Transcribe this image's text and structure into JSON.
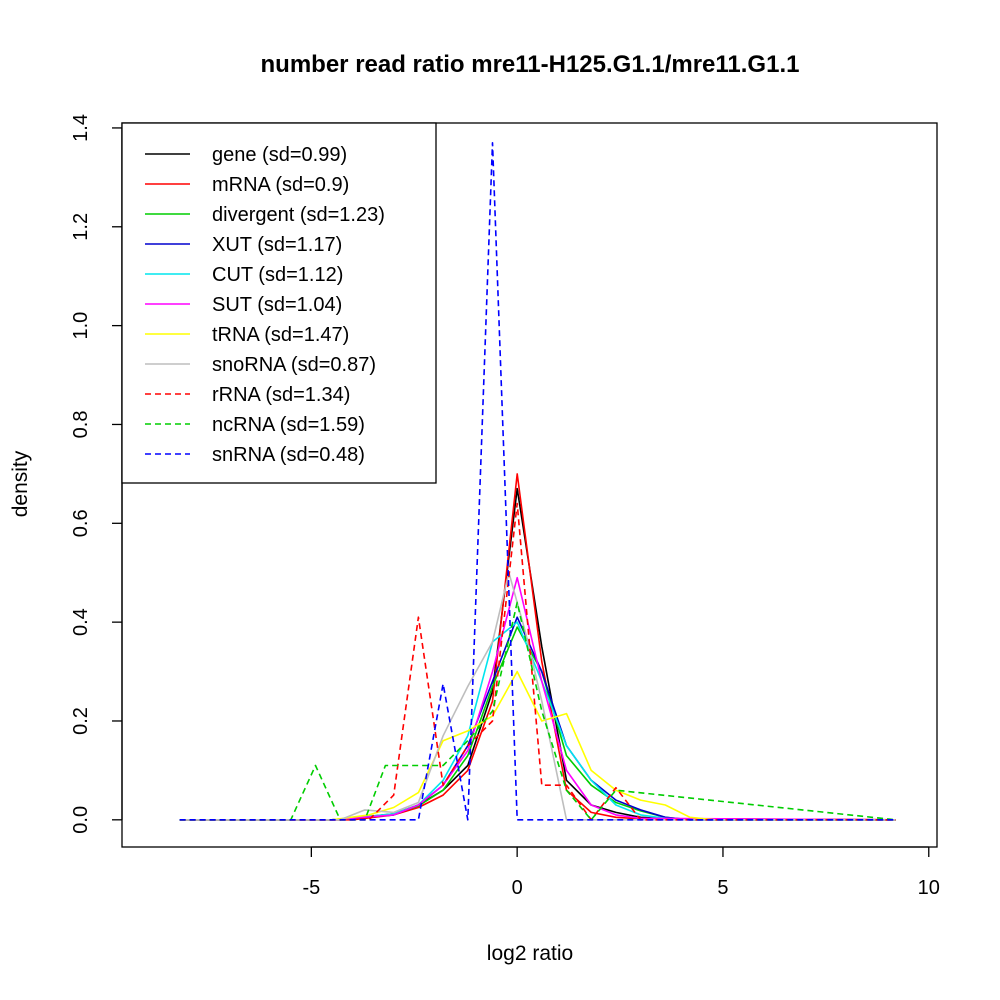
{
  "chart_data": {
    "type": "line",
    "title": "number read ratio mre11-H125.G1.1/mre11.G1.1",
    "xlabel": "log2 ratio",
    "ylabel": "density",
    "xlim": [
      -9.6,
      10.2
    ],
    "ylim": [
      -0.055,
      1.41
    ],
    "x_ticks": [
      -5,
      0,
      5,
      10
    ],
    "y_ticks": [
      0.0,
      0.2,
      0.4,
      0.6,
      0.8,
      1.0,
      1.2,
      1.4
    ],
    "x_tick_labels": [
      "-5",
      "0",
      "5",
      "10"
    ],
    "y_tick_labels": [
      "0.0",
      "0.2",
      "0.4",
      "0.6",
      "0.8",
      "1.0",
      "1.2",
      "1.4"
    ],
    "grid": false,
    "legend_position": "top-left",
    "series": [
      {
        "name": "gene (sd=0.99)",
        "color": "#000000",
        "dash": "solid",
        "x": [
          -8.2,
          -4.3,
          -3.0,
          -2.4,
          -1.8,
          -1.2,
          -0.6,
          0.0,
          0.6,
          1.2,
          1.8,
          2.4,
          3.0,
          3.6,
          9.2
        ],
        "y": [
          0.0,
          0.0,
          0.012,
          0.03,
          0.06,
          0.11,
          0.26,
          0.67,
          0.35,
          0.08,
          0.03,
          0.015,
          0.005,
          0.002,
          0.0
        ]
      },
      {
        "name": "mRNA (sd=0.9)",
        "color": "#ff0000",
        "dash": "solid",
        "x": [
          -8.2,
          -4.0,
          -3.0,
          -2.4,
          -1.8,
          -1.2,
          -0.6,
          0.0,
          0.6,
          1.2,
          1.8,
          2.4,
          3.0,
          9.2
        ],
        "y": [
          0.0,
          0.0,
          0.01,
          0.025,
          0.05,
          0.1,
          0.24,
          0.7,
          0.32,
          0.06,
          0.015,
          0.005,
          0.002,
          0.0
        ]
      },
      {
        "name": "divergent (sd=1.23)",
        "color": "#00cd00",
        "dash": "solid",
        "x": [
          -8.2,
          -4.5,
          -3.0,
          -2.4,
          -1.8,
          -1.2,
          -0.6,
          0.0,
          0.6,
          1.2,
          1.8,
          2.4,
          3.0,
          3.6,
          4.2,
          9.2
        ],
        "y": [
          0.0,
          0.0,
          0.012,
          0.028,
          0.06,
          0.13,
          0.27,
          0.39,
          0.3,
          0.13,
          0.07,
          0.035,
          0.018,
          0.005,
          0.0,
          0.0
        ]
      },
      {
        "name": "XUT (sd=1.17)",
        "color": "#0000cd",
        "dash": "solid",
        "x": [
          -8.2,
          -4.5,
          -3.0,
          -2.4,
          -1.8,
          -1.2,
          -0.6,
          0.0,
          0.6,
          1.2,
          1.8,
          2.4,
          3.0,
          3.6,
          4.2,
          9.2
        ],
        "y": [
          0.0,
          0.0,
          0.01,
          0.03,
          0.07,
          0.15,
          0.28,
          0.41,
          0.3,
          0.15,
          0.08,
          0.04,
          0.02,
          0.005,
          0.0,
          0.0
        ]
      },
      {
        "name": "CUT (sd=1.12)",
        "color": "#00e5ee",
        "dash": "solid",
        "x": [
          -8.2,
          -4.5,
          -3.0,
          -2.4,
          -1.8,
          -1.2,
          -0.6,
          0.0,
          0.6,
          1.2,
          1.8,
          2.4,
          3.0,
          3.6,
          4.2,
          9.2
        ],
        "y": [
          0.0,
          0.0,
          0.012,
          0.03,
          0.08,
          0.17,
          0.36,
          0.4,
          0.28,
          0.15,
          0.08,
          0.03,
          0.01,
          0.003,
          0.0,
          0.0
        ]
      },
      {
        "name": "SUT (sd=1.04)",
        "color": "#ff00ff",
        "dash": "solid",
        "x": [
          -8.2,
          -4.5,
          -3.0,
          -2.4,
          -1.8,
          -1.2,
          -0.6,
          0.0,
          0.6,
          1.2,
          1.8,
          2.4,
          3.0,
          9.2
        ],
        "y": [
          0.0,
          0.0,
          0.01,
          0.03,
          0.07,
          0.14,
          0.3,
          0.49,
          0.28,
          0.1,
          0.03,
          0.01,
          0.003,
          0.0
        ]
      },
      {
        "name": "tRNA (sd=1.47)",
        "color": "#ffff00",
        "dash": "solid",
        "x": [
          -8.2,
          -4.5,
          -3.6,
          -3.0,
          -2.4,
          -1.8,
          -1.2,
          -0.6,
          0.0,
          0.6,
          1.2,
          1.8,
          2.4,
          3.0,
          3.6,
          4.2,
          4.8,
          9.2
        ],
        "y": [
          0.0,
          0.0,
          0.01,
          0.025,
          0.055,
          0.16,
          0.18,
          0.21,
          0.3,
          0.2,
          0.215,
          0.1,
          0.06,
          0.04,
          0.03,
          0.005,
          0.0,
          0.0
        ]
      },
      {
        "name": "snoRNA (sd=0.87)",
        "color": "#bebebe",
        "dash": "solid",
        "x": [
          -8.2,
          -4.3,
          -3.7,
          -3.0,
          -2.4,
          -1.8,
          -1.2,
          -0.6,
          -0.2,
          0.2,
          0.6,
          1.2,
          9.2
        ],
        "y": [
          0.0,
          0.0,
          0.02,
          0.015,
          0.035,
          0.17,
          0.27,
          0.36,
          0.5,
          0.38,
          0.24,
          0.0,
          0.0
        ]
      },
      {
        "name": "rRNA (sd=1.34)",
        "color": "#ff0000",
        "dash": "dashed",
        "x": [
          -8.2,
          -3.6,
          -3.0,
          -2.4,
          -1.8,
          -1.5,
          -1.2,
          -0.6,
          0.0,
          0.6,
          1.2,
          1.8,
          2.4,
          3.0,
          9.2
        ],
        "y": [
          0.0,
          0.0,
          0.05,
          0.41,
          0.07,
          0.11,
          0.15,
          0.2,
          0.64,
          0.07,
          0.07,
          0.0,
          0.065,
          0.0,
          0.0
        ]
      },
      {
        "name": "ncRNA (sd=1.59)",
        "color": "#00cd00",
        "dash": "dashed",
        "x": [
          -8.2,
          -5.5,
          -4.9,
          -4.3,
          -3.7,
          -3.2,
          -1.8,
          -1.2,
          -0.6,
          0.0,
          0.6,
          1.2,
          1.8,
          2.4,
          9.2
        ],
        "y": [
          0.0,
          0.0,
          0.11,
          0.0,
          0.0,
          0.11,
          0.11,
          0.16,
          0.22,
          0.44,
          0.22,
          0.06,
          0.0,
          0.06,
          0.0
        ]
      },
      {
        "name": "snRNA (sd=0.48)",
        "color": "#0000ff",
        "dash": "dashed",
        "x": [
          -8.2,
          -2.4,
          -1.8,
          -1.2,
          -0.6,
          0.0,
          9.2
        ],
        "y": [
          0.0,
          0.0,
          0.275,
          0.0,
          1.37,
          0.0,
          0.0
        ]
      }
    ]
  }
}
